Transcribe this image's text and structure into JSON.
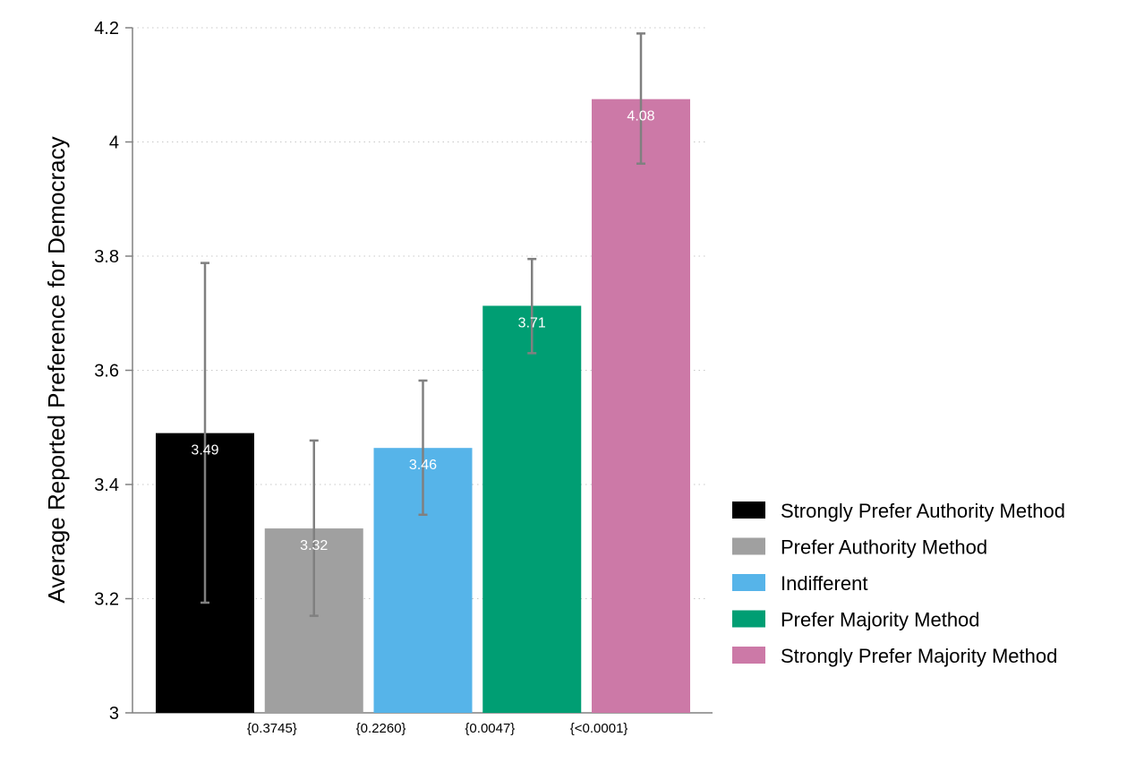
{
  "chart_data": {
    "type": "bar",
    "title": "",
    "xlabel": "",
    "ylabel": "Average Reported Preference for Democracy",
    "ylim": [
      3,
      4.2
    ],
    "yticks": [
      "3",
      "3.2",
      "3.4",
      "3.6",
      "3.8",
      "4",
      "4.2"
    ],
    "grid": true,
    "legend_position": "right",
    "categories": [
      "Strongly Prefer Authority Method",
      "Prefer Authority Method",
      "Indifferent",
      "Prefer Majority Method",
      "Strongly Prefer Majority Method"
    ],
    "values": [
      3.49,
      3.323,
      3.464,
      3.713,
      4.075
    ],
    "value_labels": [
      "3.49",
      "3.32",
      "3.46",
      "3.71",
      "4.08"
    ],
    "error_low": [
      3.193,
      3.17,
      3.347,
      3.63,
      3.962
    ],
    "error_high": [
      3.788,
      3.477,
      3.582,
      3.795,
      4.19
    ],
    "colors": [
      "#000000",
      "#a0a0a0",
      "#56b4e9",
      "#009e73",
      "#cc79a7"
    ],
    "error_color": "#808080",
    "p_value_labels": [
      "{0.3745}",
      "{0.2260}",
      "{0.0047}",
      "{<0.0001}"
    ],
    "legend": [
      {
        "label": "Strongly Prefer Authority Method",
        "color": "#000000"
      },
      {
        "label": "Prefer Authority Method",
        "color": "#a0a0a0"
      },
      {
        "label": "Indifferent",
        "color": "#56b4e9"
      },
      {
        "label": "Prefer Majority Method",
        "color": "#009e73"
      },
      {
        "label": "Strongly Prefer Majority Method",
        "color": "#cc79a7"
      }
    ]
  }
}
